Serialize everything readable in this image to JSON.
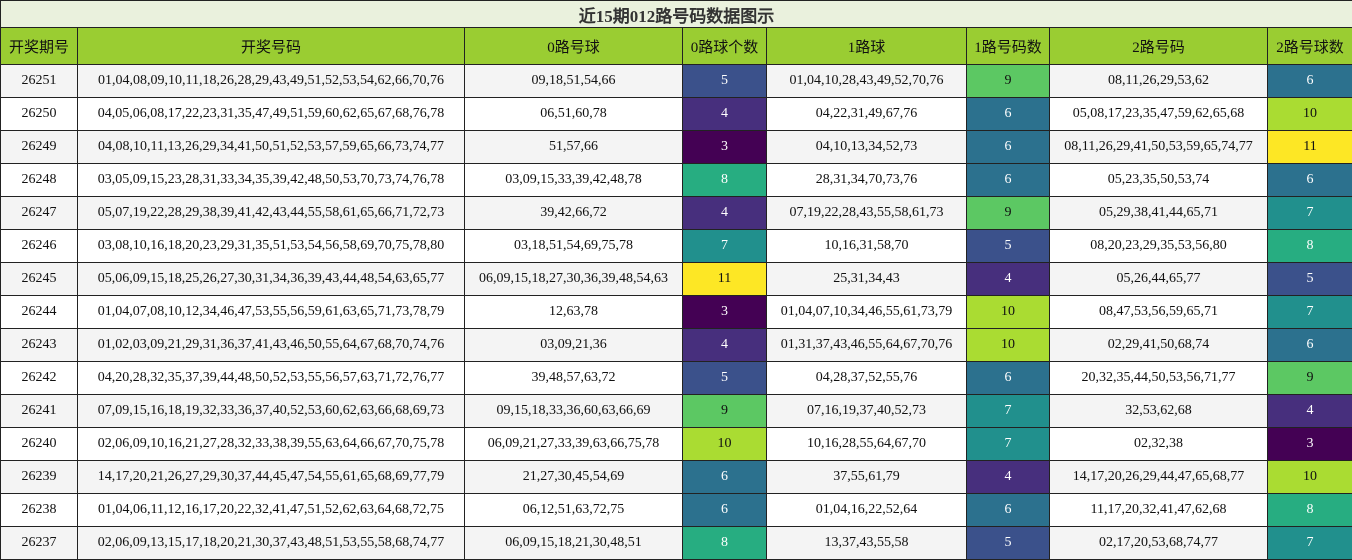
{
  "title": "近15期012路号码数据图示",
  "headers": [
    "开奖期号",
    "开奖号码",
    "0路号球",
    "0路球个数",
    "1路球",
    "1路号码数",
    "2路号码",
    "2路号球数"
  ],
  "colors": {
    "header_bg": "#9acd32",
    "title_bg": "#eaf1dd",
    "count_scale": {
      "3": "#440154",
      "4": "#472f7d",
      "5": "#3b518b",
      "6": "#2c718e",
      "7": "#21908d",
      "8": "#27ad81",
      "9": "#5cc863",
      "10": "#aadc32",
      "11": "#fde725"
    }
  },
  "rows": [
    {
      "issue": "26251",
      "numbers": "01,04,08,09,10,11,18,26,28,29,43,49,51,52,53,54,62,66,70,76",
      "r0": "09,18,51,54,66",
      "c0": "5",
      "r1": "01,04,10,28,43,49,52,70,76",
      "c1": "9",
      "r2": "08,11,26,29,53,62",
      "c2": "6"
    },
    {
      "issue": "26250",
      "numbers": "04,05,06,08,17,22,23,31,35,47,49,51,59,60,62,65,67,68,76,78",
      "r0": "06,51,60,78",
      "c0": "4",
      "r1": "04,22,31,49,67,76",
      "c1": "6",
      "r2": "05,08,17,23,35,47,59,62,65,68",
      "c2": "10"
    },
    {
      "issue": "26249",
      "numbers": "04,08,10,11,13,26,29,34,41,50,51,52,53,57,59,65,66,73,74,77",
      "r0": "51,57,66",
      "c0": "3",
      "r1": "04,10,13,34,52,73",
      "c1": "6",
      "r2": "08,11,26,29,41,50,53,59,65,74,77",
      "c2": "11"
    },
    {
      "issue": "26248",
      "numbers": "03,05,09,15,23,28,31,33,34,35,39,42,48,50,53,70,73,74,76,78",
      "r0": "03,09,15,33,39,42,48,78",
      "c0": "8",
      "r1": "28,31,34,70,73,76",
      "c1": "6",
      "r2": "05,23,35,50,53,74",
      "c2": "6"
    },
    {
      "issue": "26247",
      "numbers": "05,07,19,22,28,29,38,39,41,42,43,44,55,58,61,65,66,71,72,73",
      "r0": "39,42,66,72",
      "c0": "4",
      "r1": "07,19,22,28,43,55,58,61,73",
      "c1": "9",
      "r2": "05,29,38,41,44,65,71",
      "c2": "7"
    },
    {
      "issue": "26246",
      "numbers": "03,08,10,16,18,20,23,29,31,35,51,53,54,56,58,69,70,75,78,80",
      "r0": "03,18,51,54,69,75,78",
      "c0": "7",
      "r1": "10,16,31,58,70",
      "c1": "5",
      "r2": "08,20,23,29,35,53,56,80",
      "c2": "8"
    },
    {
      "issue": "26245",
      "numbers": "05,06,09,15,18,25,26,27,30,31,34,36,39,43,44,48,54,63,65,77",
      "r0": "06,09,15,18,27,30,36,39,48,54,63",
      "c0": "11",
      "r1": "25,31,34,43",
      "c1": "4",
      "r2": "05,26,44,65,77",
      "c2": "5"
    },
    {
      "issue": "26244",
      "numbers": "01,04,07,08,10,12,34,46,47,53,55,56,59,61,63,65,71,73,78,79",
      "r0": "12,63,78",
      "c0": "3",
      "r1": "01,04,07,10,34,46,55,61,73,79",
      "c1": "10",
      "r2": "08,47,53,56,59,65,71",
      "c2": "7"
    },
    {
      "issue": "26243",
      "numbers": "01,02,03,09,21,29,31,36,37,41,43,46,50,55,64,67,68,70,74,76",
      "r0": "03,09,21,36",
      "c0": "4",
      "r1": "01,31,37,43,46,55,64,67,70,76",
      "c1": "10",
      "r2": "02,29,41,50,68,74",
      "c2": "6"
    },
    {
      "issue": "26242",
      "numbers": "04,20,28,32,35,37,39,44,48,50,52,53,55,56,57,63,71,72,76,77",
      "r0": "39,48,57,63,72",
      "c0": "5",
      "r1": "04,28,37,52,55,76",
      "c1": "6",
      "r2": "20,32,35,44,50,53,56,71,77",
      "c2": "9"
    },
    {
      "issue": "26241",
      "numbers": "07,09,15,16,18,19,32,33,36,37,40,52,53,60,62,63,66,68,69,73",
      "r0": "09,15,18,33,36,60,63,66,69",
      "c0": "9",
      "r1": "07,16,19,37,40,52,73",
      "c1": "7",
      "r2": "32,53,62,68",
      "c2": "4"
    },
    {
      "issue": "26240",
      "numbers": "02,06,09,10,16,21,27,28,32,33,38,39,55,63,64,66,67,70,75,78",
      "r0": "06,09,21,27,33,39,63,66,75,78",
      "c0": "10",
      "r1": "10,16,28,55,64,67,70",
      "c1": "7",
      "r2": "02,32,38",
      "c2": "3"
    },
    {
      "issue": "26239",
      "numbers": "14,17,20,21,26,27,29,30,37,44,45,47,54,55,61,65,68,69,77,79",
      "r0": "21,27,30,45,54,69",
      "c0": "6",
      "r1": "37,55,61,79",
      "c1": "4",
      "r2": "14,17,20,26,29,44,47,65,68,77",
      "c2": "10"
    },
    {
      "issue": "26238",
      "numbers": "01,04,06,11,12,16,17,20,22,32,41,47,51,52,62,63,64,68,72,75",
      "r0": "06,12,51,63,72,75",
      "c0": "6",
      "r1": "01,04,16,22,52,64",
      "c1": "6",
      "r2": "11,17,20,32,41,47,62,68",
      "c2": "8"
    },
    {
      "issue": "26237",
      "numbers": "02,06,09,13,15,17,18,20,21,30,37,43,48,51,53,55,58,68,74,77",
      "r0": "06,09,15,18,21,30,48,51",
      "c0": "8",
      "r1": "13,37,43,55,58",
      "c1": "5",
      "r2": "02,17,20,53,68,74,77",
      "c2": "7"
    }
  ]
}
